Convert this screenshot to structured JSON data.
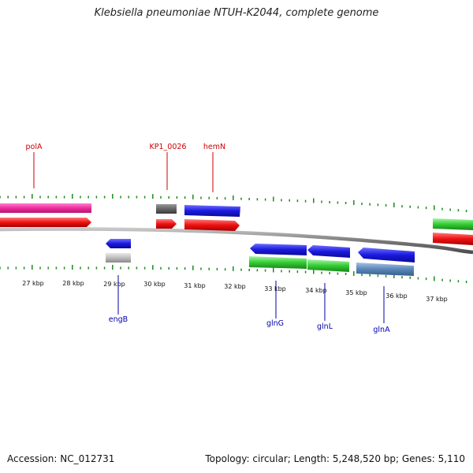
{
  "title": "Klebsiella pneumoniae NTUH-K2044, complete genome",
  "footer": {
    "accession": "Accession: NC_012731",
    "summary": "Topology: circular; Length: 5,248,520 bp; Genes: 5,110"
  },
  "colors": {
    "backbone": "#7a7a7a",
    "tick": "#1a8a1a",
    "label_top": "#cc0000",
    "label_bottom": "#0000aa",
    "magenta": "#ee2a9a",
    "red": "#ee1111",
    "blue": "#1a1adf",
    "green": "#33cc33",
    "gray_dark": "#666666",
    "gray_light": "#bdbdbd",
    "steel": "#5a86b8"
  },
  "axis": {
    "kbp_labels": [
      "27 kbp",
      "28 kbp",
      "29 kbp",
      "30 kbp",
      "31 kbp",
      "32 kbp",
      "33 kbp",
      "34 kbp",
      "35 kbp",
      "36 kbp",
      "37 kbp"
    ]
  },
  "gene_labels_top": [
    "polA",
    "KP1_0026",
    "hemN"
  ],
  "gene_labels_bottom": [
    "engB",
    "glnG",
    "glnL",
    "glnA"
  ]
}
